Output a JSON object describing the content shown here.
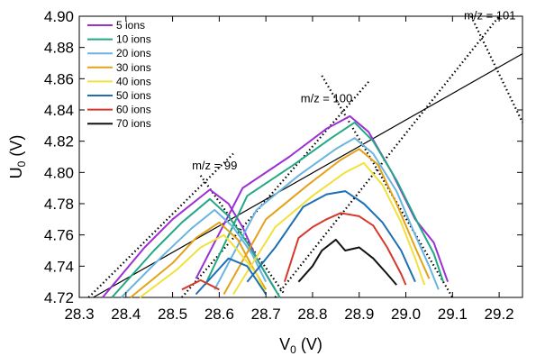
{
  "chart_data": {
    "type": "line",
    "xlabel": {
      "main": "V",
      "sub": "0",
      "unit": " (V)"
    },
    "ylabel": {
      "main": "U",
      "sub": "0",
      "unit": " (V)"
    },
    "xlim": [
      28.3,
      29.25
    ],
    "ylim": [
      4.72,
      4.9
    ],
    "xticks": [
      "28.3",
      "28.4",
      "28.5",
      "28.6",
      "28.7",
      "28.8",
      "28.9",
      "29.0",
      "29.1",
      "29.2"
    ],
    "yticks": [
      "4.72",
      "4.74",
      "4.76",
      "4.78",
      "4.80",
      "4.82",
      "4.84",
      "4.86",
      "4.88",
      "4.90"
    ],
    "series": [
      {
        "name": "5 ions",
        "color": "#9b2fd4",
        "segments": [
          [
            [
              28.35,
              4.72
            ],
            [
              28.44,
              4.752
            ],
            [
              28.5,
              4.77
            ],
            [
              28.58,
              4.789
            ],
            [
              28.62,
              4.78
            ],
            [
              28.65,
              4.765
            ],
            [
              28.68,
              4.745
            ],
            [
              28.72,
              4.725
            ]
          ],
          [
            [
              28.55,
              4.732
            ],
            [
              28.65,
              4.79
            ],
            [
              28.75,
              4.81
            ],
            [
              28.83,
              4.828
            ],
            [
              28.88,
              4.836
            ],
            [
              28.92,
              4.826
            ],
            [
              28.97,
              4.8
            ],
            [
              29.02,
              4.77
            ],
            [
              29.06,
              4.755
            ],
            [
              29.09,
              4.73
            ]
          ]
        ]
      },
      {
        "name": "10 ions",
        "color": "#22a884",
        "segments": [
          [
            [
              28.37,
              4.72
            ],
            [
              28.46,
              4.75
            ],
            [
              28.52,
              4.768
            ],
            [
              28.58,
              4.783
            ],
            [
              28.62,
              4.772
            ],
            [
              28.66,
              4.755
            ],
            [
              28.7,
              4.735
            ],
            [
              28.73,
              4.72
            ]
          ],
          [
            [
              28.57,
              4.728
            ],
            [
              28.66,
              4.785
            ],
            [
              28.76,
              4.805
            ],
            [
              28.84,
              4.822
            ],
            [
              28.89,
              4.832
            ],
            [
              28.93,
              4.82
            ],
            [
              28.98,
              4.795
            ],
            [
              29.03,
              4.765
            ],
            [
              29.06,
              4.748
            ],
            [
              29.08,
              4.73
            ]
          ]
        ]
      },
      {
        "name": "20 ions",
        "color": "#6ab4e0",
        "segments": [
          [
            [
              28.39,
              4.72
            ],
            [
              28.48,
              4.747
            ],
            [
              28.54,
              4.764
            ],
            [
              28.59,
              4.776
            ],
            [
              28.63,
              4.765
            ],
            [
              28.67,
              4.748
            ],
            [
              28.7,
              4.73
            ]
          ],
          [
            [
              28.59,
              4.725
            ],
            [
              28.68,
              4.776
            ],
            [
              28.77,
              4.798
            ],
            [
              28.85,
              4.815
            ],
            [
              28.89,
              4.822
            ],
            [
              28.93,
              4.812
            ],
            [
              28.98,
              4.788
            ],
            [
              29.02,
              4.76
            ],
            [
              29.05,
              4.74
            ],
            [
              29.07,
              4.725
            ]
          ]
        ]
      },
      {
        "name": "30 ions",
        "color": "#e3a21a",
        "segments": [
          [
            [
              28.41,
              4.72
            ],
            [
              28.5,
              4.742
            ],
            [
              28.55,
              4.758
            ],
            [
              28.6,
              4.768
            ],
            [
              28.64,
              4.757
            ],
            [
              28.67,
              4.74
            ],
            [
              28.7,
              4.725
            ]
          ],
          [
            [
              28.61,
              4.722
            ],
            [
              28.7,
              4.77
            ],
            [
              28.79,
              4.792
            ],
            [
              28.86,
              4.808
            ],
            [
              28.9,
              4.815
            ],
            [
              28.94,
              4.805
            ],
            [
              28.98,
              4.78
            ],
            [
              29.02,
              4.752
            ],
            [
              29.05,
              4.732
            ]
          ]
        ]
      },
      {
        "name": "40 ions",
        "color": "#f2e03c",
        "segments": [
          [
            [
              28.43,
              4.72
            ],
            [
              28.51,
              4.738
            ],
            [
              28.56,
              4.752
            ],
            [
              28.61,
              4.76
            ],
            [
              28.64,
              4.75
            ],
            [
              28.68,
              4.735
            ],
            [
              28.7,
              4.722
            ]
          ],
          [
            [
              28.63,
              4.722
            ],
            [
              28.72,
              4.765
            ],
            [
              28.8,
              4.785
            ],
            [
              28.87,
              4.8
            ],
            [
              28.91,
              4.806
            ],
            [
              28.95,
              4.792
            ],
            [
              28.99,
              4.768
            ],
            [
              29.02,
              4.745
            ],
            [
              29.04,
              4.728
            ]
          ]
        ]
      },
      {
        "name": "50 ions",
        "color": "#1f6fb4",
        "segments": [
          [
            [
              28.55,
              4.722
            ],
            [
              28.62,
              4.745
            ],
            [
              28.66,
              4.74
            ],
            [
              28.7,
              4.722
            ]
          ],
          [
            [
              28.66,
              4.73
            ],
            [
              28.72,
              4.752
            ],
            [
              28.78,
              4.778
            ],
            [
              28.83,
              4.786
            ],
            [
              28.87,
              4.788
            ],
            [
              28.91,
              4.78
            ],
            [
              28.95,
              4.768
            ],
            [
              28.99,
              4.75
            ],
            [
              29.02,
              4.73
            ]
          ]
        ]
      },
      {
        "name": "60 ions",
        "color": "#d6392c",
        "segments": [
          [
            [
              28.52,
              4.725
            ],
            [
              28.56,
              4.731
            ],
            [
              28.6,
              4.725
            ]
          ],
          [
            [
              28.74,
              4.73
            ],
            [
              28.77,
              4.758
            ],
            [
              28.8,
              4.765
            ],
            [
              28.83,
              4.77
            ],
            [
              28.86,
              4.774
            ],
            [
              28.9,
              4.772
            ],
            [
              28.93,
              4.766
            ],
            [
              28.96,
              4.752
            ],
            [
              28.99,
              4.735
            ],
            [
              29.0,
              4.728
            ]
          ]
        ]
      },
      {
        "name": "70 ions",
        "color": "#111111",
        "segments": [
          [
            [
              28.77,
              4.73
            ],
            [
              28.8,
              4.74
            ],
            [
              28.82,
              4.75
            ],
            [
              28.85,
              4.757
            ],
            [
              28.87,
              4.75
            ],
            [
              28.9,
              4.752
            ],
            [
              28.93,
              4.745
            ],
            [
              28.96,
              4.735
            ],
            [
              28.98,
              4.728
            ]
          ]
        ]
      }
    ],
    "annotations": [
      {
        "text": "m/z = 99",
        "x": 28.59,
        "y": 4.802
      },
      {
        "text": "m/z = 100",
        "x": 28.83,
        "y": 4.845
      },
      {
        "text": "m/z = 101",
        "x": 29.18,
        "y": 4.898
      }
    ],
    "stability_lines": [
      [
        [
          28.32,
          4.72
        ],
        [
          28.63,
          4.812
        ]
      ],
      [
        [
          28.56,
          4.798
        ],
        [
          28.74,
          4.722
        ]
      ],
      [
        [
          28.52,
          4.72
        ],
        [
          28.92,
          4.858
        ]
      ],
      [
        [
          28.82,
          4.862
        ],
        [
          29.1,
          4.72
        ]
      ],
      [
        [
          28.72,
          4.72
        ],
        [
          29.2,
          4.9
        ]
      ],
      [
        [
          29.14,
          4.9
        ],
        [
          29.28,
          4.832
        ]
      ]
    ],
    "operating_line": [
      [
        28.33,
        4.72
      ],
      [
        29.25,
        4.876
      ]
    ],
    "legend_position": "top-left",
    "grid": false
  }
}
